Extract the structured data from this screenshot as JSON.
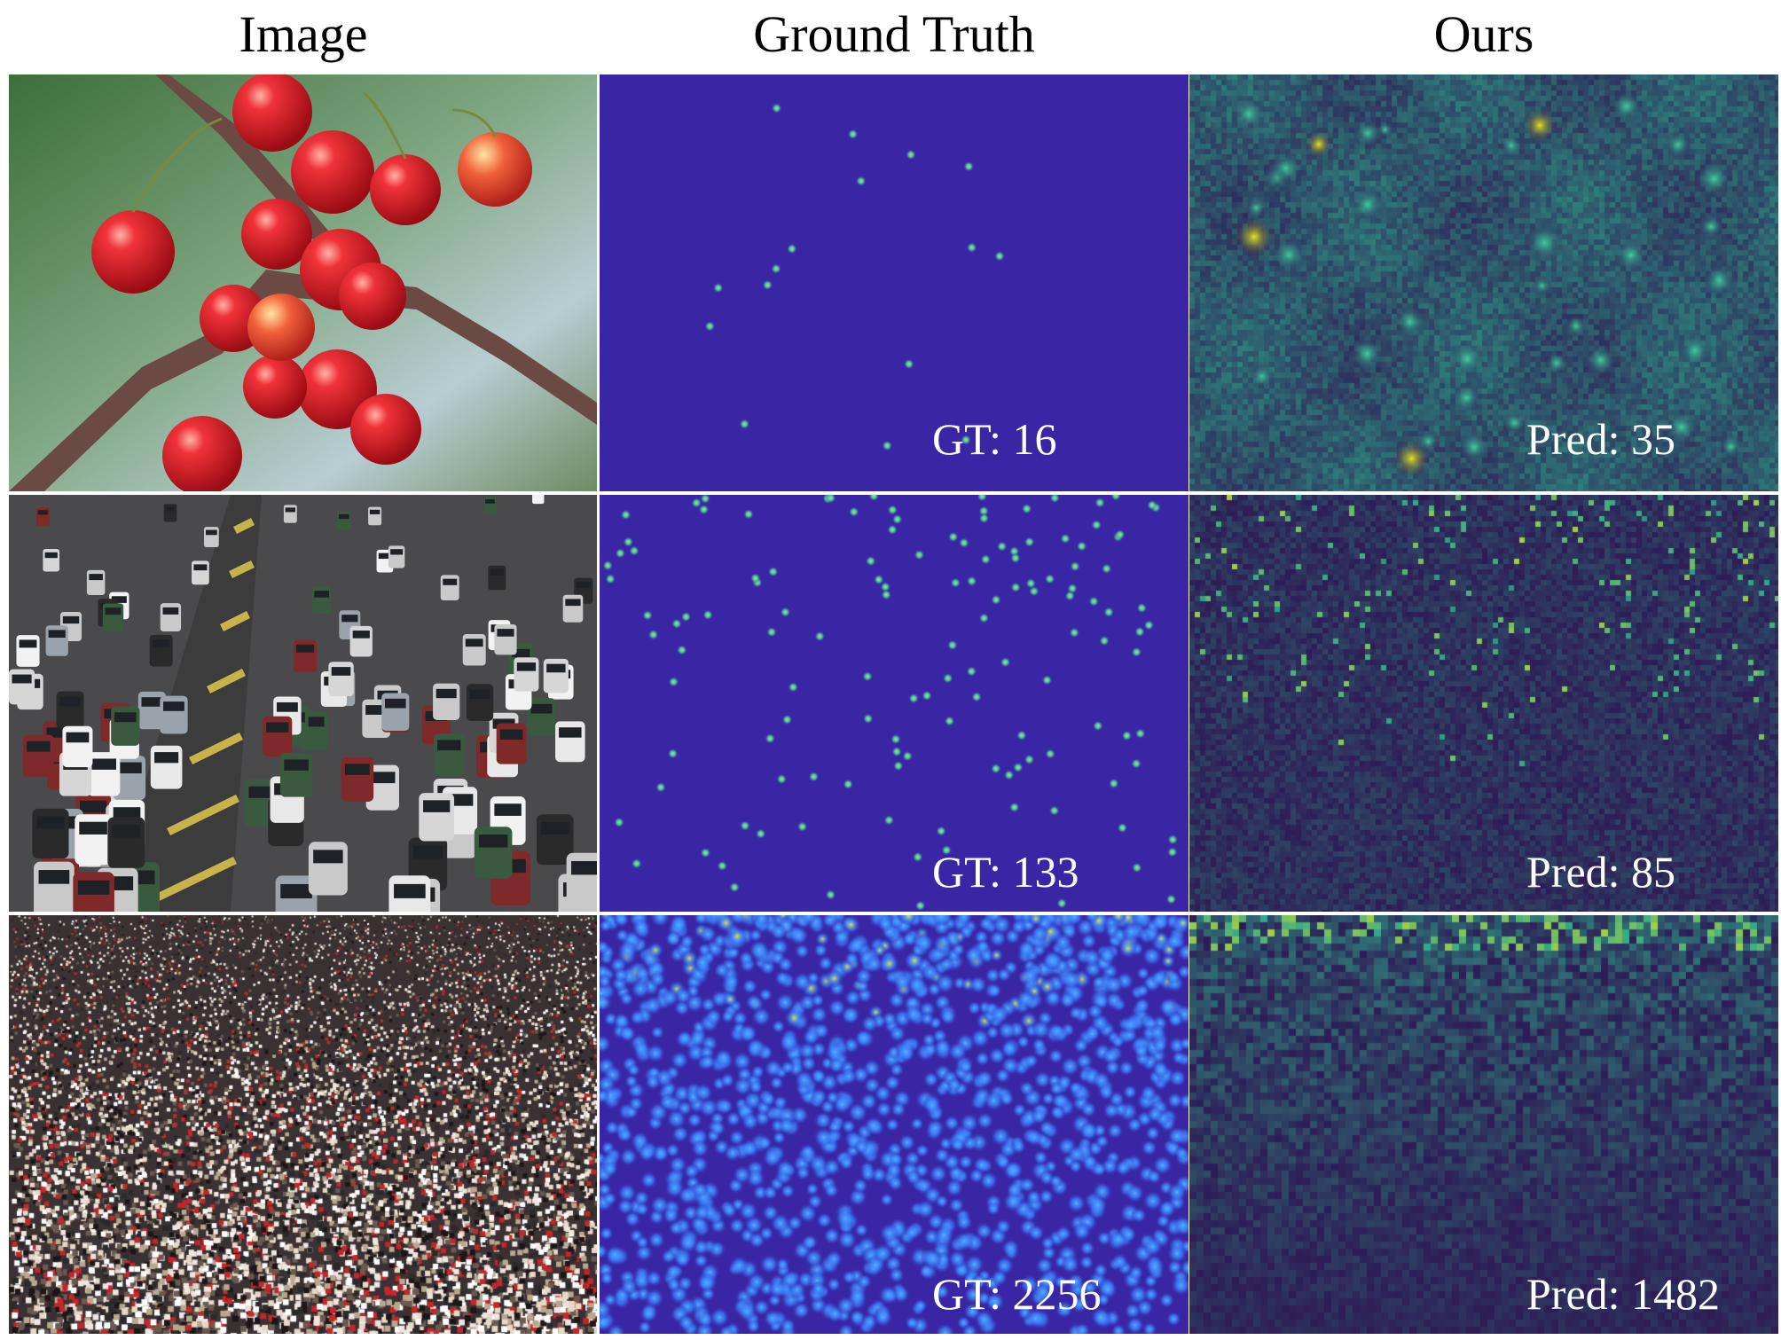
{
  "headers": {
    "image": "Image",
    "ground_truth": "Ground Truth",
    "ours": "Ours"
  },
  "rows": [
    {
      "subject": "cherries",
      "gt_label": "GT: 16",
      "pred_label": "Pred: 35",
      "gt_count": 16,
      "pred_count": 35
    },
    {
      "subject": "traffic",
      "gt_label": "GT: 133",
      "pred_label": "Pred: 85",
      "gt_count": 133,
      "pred_count": 85
    },
    {
      "subject": "crowd",
      "gt_label": "GT: 2256",
      "pred_label": "Pred: 1482",
      "gt_count": 2256,
      "pred_count": 1482
    }
  ],
  "colors": {
    "gt_background": "#3a25a4",
    "gt_point": "#35c9a0",
    "pred_background": "#2e1c56",
    "pred_hot": "#e9e51d",
    "pred_mid": "#2fa98a"
  }
}
